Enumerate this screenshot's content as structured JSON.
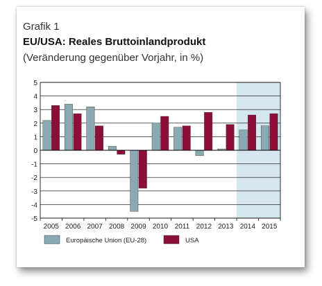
{
  "header": {
    "kicker": "Grafik 1",
    "title": "EU/USA: Reales Bruttoinlandprodukt",
    "subtitle": "(Veränderung gegenüber Vorjahr, in %)"
  },
  "colors": {
    "eu": "#8aa9b3",
    "usa": "#8c0f3a",
    "forecast_band": "#d6e6ee",
    "zero_line": "#000000",
    "grid": "#000000"
  },
  "chart_data": {
    "type": "bar",
    "title": "EU/USA: Reales Bruttoinlandprodukt",
    "subtitle": "(Veränderung gegenüber Vorjahr, in %)",
    "categories": [
      "2005",
      "2006",
      "2007",
      "2008",
      "2009",
      "2010",
      "2011",
      "2012",
      "2013",
      "2014",
      "2015"
    ],
    "series": [
      {
        "name": "Europäische Union (EU-28)",
        "values": [
          2.2,
          3.4,
          3.2,
          0.3,
          -4.5,
          2.0,
          1.7,
          -0.4,
          0.1,
          1.5,
          1.8
        ]
      },
      {
        "name": "USA",
        "values": [
          3.3,
          2.7,
          1.8,
          -0.3,
          -2.8,
          2.5,
          1.8,
          2.8,
          1.9,
          2.6,
          2.7
        ]
      }
    ],
    "ylim": [
      -5,
      5
    ],
    "yticks": [
      "5",
      "4",
      "3",
      "2",
      "1",
      "0",
      "-1",
      "-2",
      "-3",
      "-4",
      "-5"
    ],
    "grid": true,
    "shaded_categories": [
      "2014",
      "2015"
    ],
    "legend_position": "bottom-left"
  }
}
